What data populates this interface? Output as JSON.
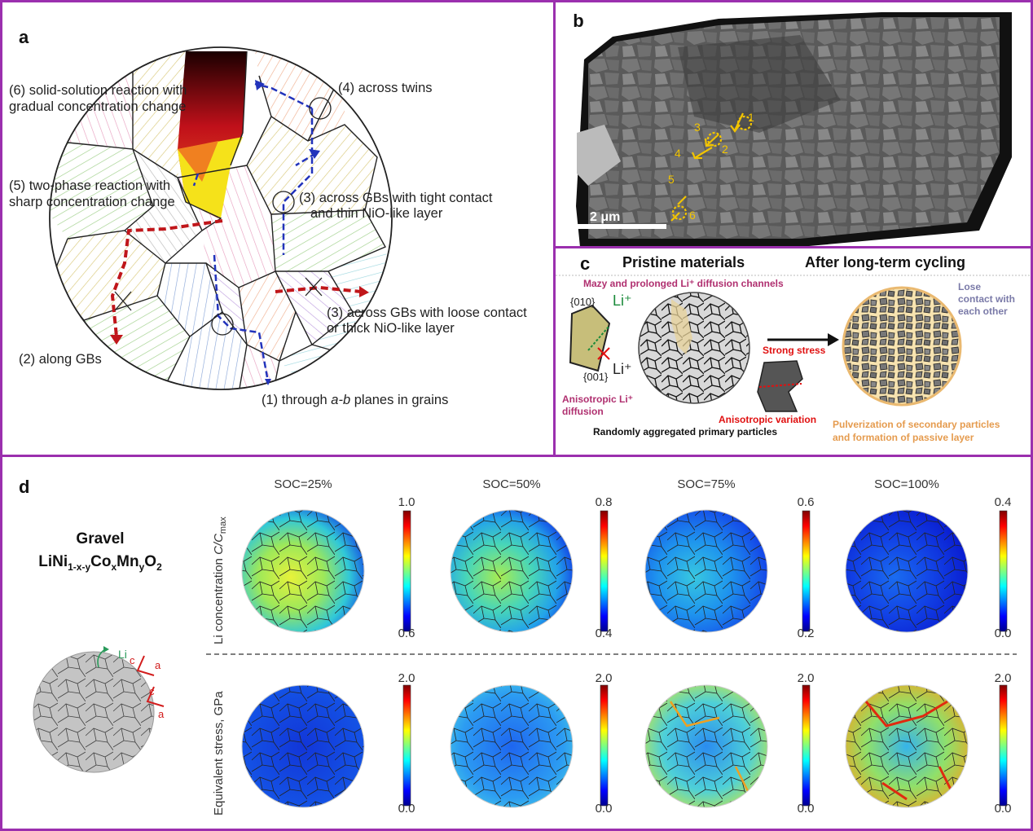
{
  "panel_a": {
    "label": "a",
    "annotations": {
      "solid_solution_1": "(6) solid-solution reaction with",
      "solid_solution_2": "gradual concentration change",
      "twins": "(4) across twins",
      "two_phase_1": "(5) two-phase reaction with",
      "two_phase_2": "sharp concentration change",
      "tight_1": "(3) across GBs with tight contact",
      "tight_2": "and thin NiO-like layer",
      "loose_1": "(3) across GBs with loose contact",
      "loose_2": "or thick NiO-like layer",
      "along_gbs": "(2) along GBs",
      "through_prefix": "(1) through ",
      "through_italic": "a-b",
      "through_suffix": " planes in grains"
    }
  },
  "panel_b": {
    "label": "b",
    "scale_bar": "2 μm",
    "markers": [
      "1",
      "2",
      "3",
      "4",
      "5",
      "6"
    ]
  },
  "panel_c": {
    "label": "c",
    "title_left": "Pristine materials",
    "title_right": "After long-term cycling",
    "mazy_text": "Mazy and prolonged Li⁺ diffusion channels",
    "plane_010": "{010}",
    "plane_001": "{001}",
    "li_plus_1": "Li⁺",
    "li_plus_2": "Li⁺",
    "aniso_li_1": "Anisotropic Li⁺",
    "aniso_li_2": "diffusion",
    "random_text": "Randomly aggregated primary particles",
    "strong_stress": "Strong stress",
    "aniso_variation": "Anisotropic variation",
    "lose_1": "Lose",
    "lose_2": "contact with",
    "lose_3": "each other",
    "pulver_1": "Pulverization of secondary particles",
    "pulver_2": "and formation of passive layer"
  },
  "panel_d": {
    "label": "d",
    "material_name": "Gravel",
    "formula": {
      "base": "LiNi",
      "sub1": "1-x-y",
      "co": "Co",
      "sub2": "x",
      "mn": "Mn",
      "sub3": "y",
      "o": "O",
      "sub4": "2"
    },
    "li_label": "Li",
    "axis_c": "c",
    "axis_a": "a",
    "soc_labels": [
      "SOC=25%",
      "SOC=50%",
      "SOC=75%",
      "SOC=100%"
    ],
    "row1_ylabel_prefix": "Li concentration ",
    "row1_ylabel_italic": "C/C",
    "row1_ylabel_sub": "max",
    "row2_ylabel": "Equivalent stress, GPa",
    "conc_max": [
      "1.0",
      "0.8",
      "0.6",
      "0.4"
    ],
    "conc_min": [
      "0.6",
      "0.4",
      "0.2",
      "0.0"
    ],
    "stress_max": [
      "2.0",
      "2.0",
      "2.0",
      "2.0"
    ],
    "stress_min": [
      "0.0",
      "0.0",
      "0.0",
      "0.0"
    ]
  }
}
